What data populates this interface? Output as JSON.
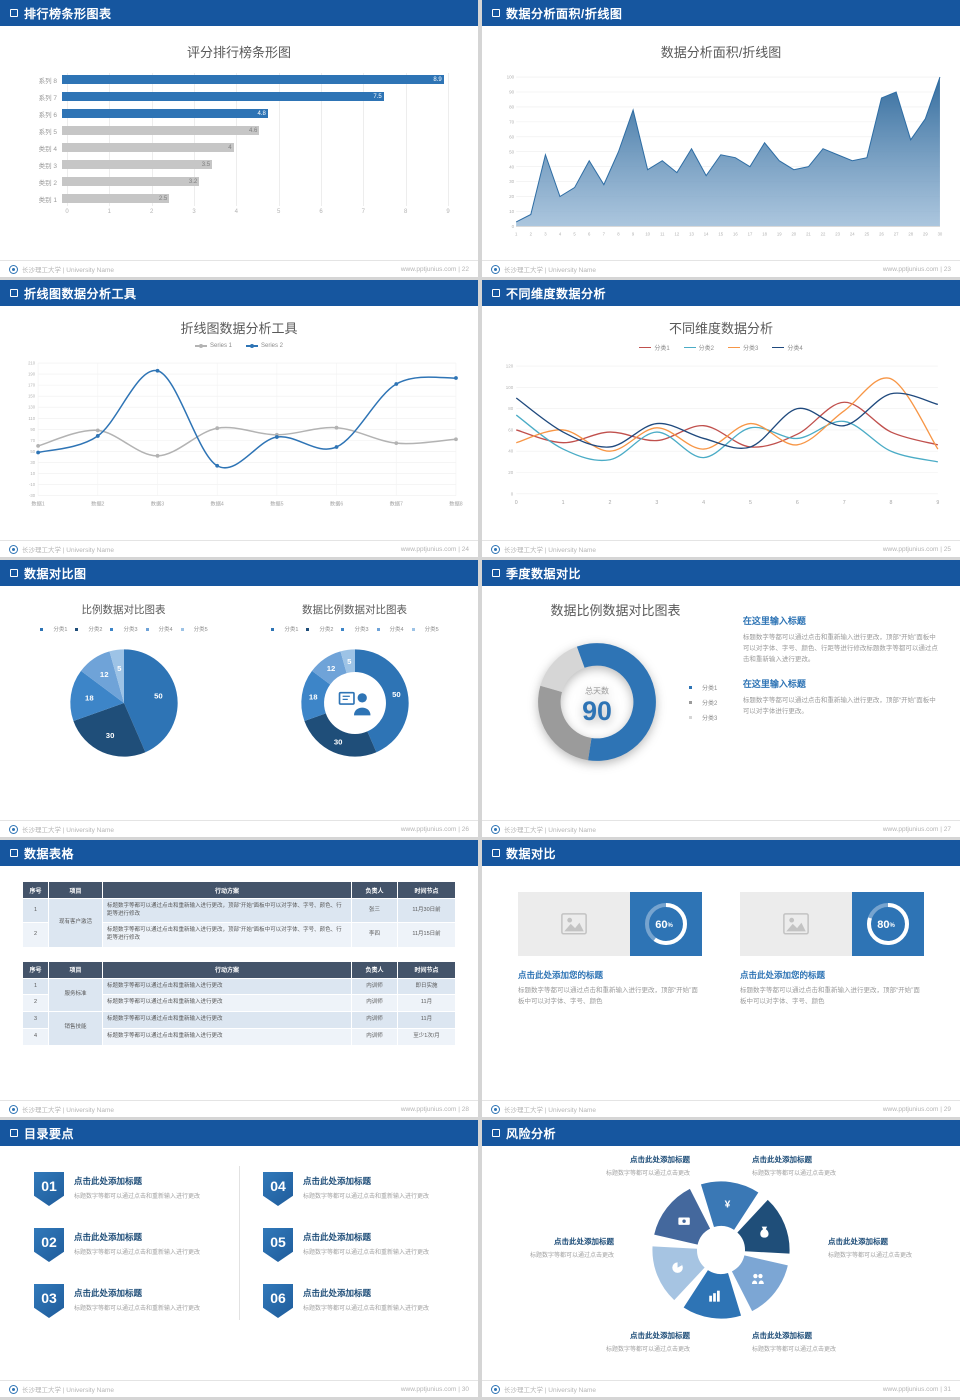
{
  "meta": {
    "background": "#d5d5d5",
    "accent": "#2e74b5",
    "header_blue": "#16569f",
    "footer_left": "长沙理工大学 | University Name",
    "footer_site": "www.pptjunius.com",
    "footer_sep": " | "
  },
  "slides": [
    {
      "header": "排行榜条形图表",
      "page": "22",
      "title": "评分排行榜条形图",
      "chart_data": {
        "type": "bar",
        "orientation": "horizontal",
        "categories": [
          "系列 8",
          "系列 7",
          "系列 6",
          "系列 5",
          "类别 4",
          "类别 3",
          "类别 2",
          "类别 1"
        ],
        "values": [
          8.9,
          7.5,
          4.8,
          4.6,
          4,
          3.5,
          3.2,
          2.5
        ],
        "colors": [
          "#2e74b5",
          "#2e74b5",
          "#2e74b5",
          "#c6c6c6",
          "#c6c6c6",
          "#c6c6c6",
          "#c6c6c6",
          "#c6c6c6"
        ],
        "xlim": [
          0,
          9
        ],
        "xticks": [
          0,
          1,
          2,
          3,
          4,
          5,
          6,
          7,
          8,
          9
        ],
        "grid": true
      }
    },
    {
      "header": "数据分析面积/折线图",
      "page": "23",
      "title": "数据分析面积/折线图",
      "chart_data": {
        "type": "area",
        "x": [
          1,
          2,
          3,
          4,
          5,
          6,
          7,
          8,
          9,
          10,
          11,
          12,
          13,
          14,
          15,
          16,
          17,
          18,
          19,
          20,
          21,
          22,
          23,
          24,
          25,
          26,
          27,
          28,
          29,
          30
        ],
        "values": [
          3,
          8,
          48,
          20,
          26,
          44,
          28,
          50,
          78,
          38,
          44,
          36,
          52,
          34,
          48,
          46,
          40,
          56,
          44,
          38,
          40,
          52,
          48,
          44,
          46,
          86,
          90,
          58,
          72,
          100
        ],
        "ylim": [
          0,
          100
        ],
        "yticks": [
          0,
          10,
          20,
          30,
          40,
          50,
          60,
          70,
          80,
          90,
          100
        ],
        "fill_top": "#356d9e",
        "fill_bottom": "#9dbcd8",
        "line_color": "#2e6da4",
        "grid": true
      }
    },
    {
      "header": "折线图数据分析工具",
      "page": "24",
      "title": "折线图数据分析工具",
      "chart_data": {
        "type": "line",
        "categories": [
          "数据1",
          "数据2",
          "数据3",
          "数据4",
          "数据5",
          "数据6",
          "数据7",
          "数据8"
        ],
        "series": [
          {
            "name": "Series 1",
            "color": "#b3b3b3",
            "values": [
              60,
              88,
              42,
              92,
              80,
              93,
              65,
              72
            ]
          },
          {
            "name": "Series 2",
            "color": "#2e74b5",
            "values": [
              48,
              78,
              196,
              24,
              76,
              58,
              172,
              183
            ]
          }
        ],
        "ylim": [
          -30,
          210
        ],
        "yticks": [
          -30,
          -10,
          10,
          30,
          50,
          70,
          90,
          110,
          130,
          150,
          170,
          190,
          210
        ],
        "legend_position": "top",
        "grid": true
      }
    },
    {
      "header": "不同维度数据分析",
      "page": "25",
      "title": "不同维度数据分析",
      "chart_data": {
        "type": "line",
        "x": [
          0,
          1,
          2,
          3,
          4,
          5,
          6,
          7,
          8,
          9
        ],
        "series": [
          {
            "name": "分类1",
            "color": "#c0504d",
            "values": [
              60,
              48,
              58,
              50,
              64,
              44,
              56,
              86,
              58,
              46
            ]
          },
          {
            "name": "分类2",
            "color": "#4bacc6",
            "values": [
              74,
              42,
              32,
              58,
              34,
              62,
              52,
              68,
              40,
              30
            ]
          },
          {
            "name": "分类3",
            "color": "#f79646",
            "values": [
              48,
              60,
              40,
              62,
              42,
              66,
              46,
              78,
              108,
              42
            ]
          },
          {
            "name": "分类4",
            "color": "#1f497d",
            "values": [
              90,
              58,
              44,
              66,
              52,
              44,
              80,
              64,
              94,
              84
            ]
          }
        ],
        "ylim": [
          0,
          120
        ],
        "yticks": [
          0,
          20,
          40,
          60,
          80,
          100,
          120
        ],
        "legend_position": "top",
        "grid": true
      }
    },
    {
      "header": "数据对比图",
      "page": "26",
      "left": {
        "title": "比例数据对比图表",
        "legend": [
          "分类1",
          "分类2",
          "分类3",
          "分类4",
          "分类5"
        ],
        "chart_data": {
          "type": "pie",
          "values": [
            50,
            30,
            18,
            12,
            5
          ],
          "colors": [
            "#2e74b5",
            "#1f4e79",
            "#3d85c8",
            "#6fa3d8",
            "#9dc3e6"
          ]
        }
      },
      "right": {
        "title": "数据比例数据对比图表",
        "legend": [
          "分类1",
          "分类2",
          "分类3",
          "分类4",
          "分类5"
        ],
        "chart_data": {
          "type": "donut",
          "values": [
            50,
            30,
            18,
            12,
            5
          ],
          "colors": [
            "#2e74b5",
            "#1f4e79",
            "#3d85c8",
            "#6fa3d8",
            "#9dc3e6"
          ]
        }
      }
    },
    {
      "header": "季度数据对比",
      "page": "27",
      "title": "数据比例数据对比图表",
      "donut": {
        "type": "donut",
        "values": [
          58,
          27,
          15
        ],
        "colors": [
          "#2e74b5",
          "#9b9b9b",
          "#d6d6d6"
        ],
        "center_label": "总天数",
        "center_value": "90"
      },
      "legend": [
        "分类1",
        "分类2",
        "分类3"
      ],
      "blocks": [
        {
          "heading": "在这里输入标题",
          "body": "标题数字等都可以通过点击和重新输入进行更改，顶部“开始”面板中可以对字体、字号、颜色、行距等进行修改标题数字等都可以通过点击和重新输入进行更改。"
        },
        {
          "heading": "在这里输入标题",
          "body": "标题数字等都可以通过点击和重新输入进行更改，顶部“开始”面板中可以对字体进行更改。"
        }
      ]
    },
    {
      "header": "数据表格",
      "page": "28",
      "tables": [
        {
          "headers": [
            "序号",
            "项目",
            "行动方案",
            "负责人",
            "时间节点"
          ],
          "rows": [
            [
              "1",
              "现有客户激活",
              "标题数字等都可以通过点击和重新输入进行更改，顶部“开始”面板中可以对字体、字号、颜色、行距等进行修改",
              "张三",
              "11月30日前"
            ],
            [
              "2",
              "",
              "标题数字等都可以通过点击和重新输入进行更改，顶部“开始”面板中可以对字体、字号、颜色、行距等进行修改",
              "李四",
              "11月15日前"
            ]
          ]
        },
        {
          "headers": [
            "序号",
            "项目",
            "行动方案",
            "负责人",
            "时间节点"
          ],
          "rows": [
            [
              "1",
              "服务标准",
              "标题数字等都可以通过点击和重新输入进行更改",
              "内训师",
              "即日实施"
            ],
            [
              "2",
              "",
              "标题数字等都可以通过点击和重新输入进行更改",
              "内训师",
              "11月"
            ],
            [
              "3",
              "销售技能",
              "标题数字等都可以通过点击和重新输入进行更改",
              "内训师",
              "11月"
            ],
            [
              "4",
              "",
              "标题数字等都可以通过点击和重新输入进行更改",
              "内训师",
              "至少1次/月"
            ]
          ]
        }
      ]
    },
    {
      "header": "数据对比",
      "page": "29",
      "cards": [
        {
          "percent": 60,
          "suffix": "%",
          "title": "点击此处添加您的标题",
          "body": "标题数字等都可以通过点击和重新输入进行更改，顶部“开始”面板中可以对字体、字号、颜色"
        },
        {
          "percent": 80,
          "suffix": "%",
          "title": "点击此处添加您的标题",
          "body": "标题数字等都可以通过点击和重新输入进行更改，顶部“开始”面板中可以对字体、字号、颜色"
        }
      ]
    },
    {
      "header": "目录要点",
      "page": "30",
      "items": [
        {
          "num": "01",
          "title": "点击此处添加标题",
          "body": "标题数字等都可以通过点击和重新输入进行更改"
        },
        {
          "num": "04",
          "title": "点击此处添加标题",
          "body": "标题数字等都可以通过点击和重新输入进行更改"
        },
        {
          "num": "02",
          "title": "点击此处添加标题",
          "body": "标题数字等都可以通过点击和重新输入进行更改"
        },
        {
          "num": "05",
          "title": "点击此处添加标题",
          "body": "标题数字等都可以通过点击和重新输入进行更改"
        },
        {
          "num": "03",
          "title": "点击此处添加标题",
          "body": "标题数字等都可以通过点击和重新输入进行更改"
        },
        {
          "num": "06",
          "title": "点击此处添加标题",
          "body": "标题数字等都可以通过点击和重新输入进行更改"
        }
      ]
    },
    {
      "header": "风险分析",
      "page": "31",
      "labels": [
        {
          "title": "点击此处添加标题",
          "body": "标题数字等都可以通过点击更改"
        },
        {
          "title": "点击此处添加标题",
          "body": "标题数字等都可以通过点击更改"
        },
        {
          "title": "点击此处添加标题",
          "body": "标题数字等都可以通过点击更改"
        },
        {
          "title": "点击此处添加标题",
          "body": "标题数字等都可以通过点击更改"
        },
        {
          "title": "点击此处添加标题",
          "body": "标题数字等都可以通过点击更改"
        },
        {
          "title": "点击此处添加标题",
          "body": "标题数字等都可以通过点击更改"
        }
      ],
      "icons": [
        "coin-yen-icon",
        "money-bag-icon",
        "people-icon",
        "bar-chart-icon",
        "pie-chart-icon",
        "banknote-icon"
      ],
      "icon_glyphs": {
        "yen": "¥"
      },
      "wheel_colors": [
        "#3a78b5",
        "#1f4e79",
        "#7ca6d4",
        "#2e74b5",
        "#a6c4e2",
        "#44689d"
      ]
    }
  ]
}
